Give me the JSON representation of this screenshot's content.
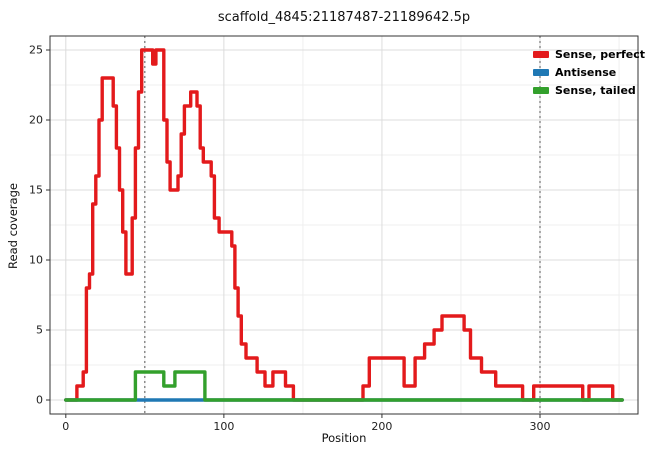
{
  "chart_data": {
    "type": "line",
    "subtype": "step-coverage",
    "title": "scaffold_4845:21187487-21189642.5p",
    "xlabel": "Position",
    "ylabel": "Read coverage",
    "xlim": [
      -10,
      362
    ],
    "ylim": [
      -1,
      26
    ],
    "x_ticks": [
      0,
      100,
      200,
      300
    ],
    "y_ticks": [
      0,
      5,
      10,
      15,
      20,
      25
    ],
    "x_minor": [
      50,
      150,
      250,
      350
    ],
    "y_minor": [
      2.5,
      7.5,
      12.5,
      17.5,
      22.5
    ],
    "grid": true,
    "legend_position": "top-right-inside",
    "vlines": [
      50,
      300
    ],
    "vline_color": "#555555",
    "panel_border_color": "#333333",
    "grid_major_color": "#dcdcdc",
    "grid_minor_color": "#efefef",
    "series": [
      {
        "name": "Sense, perfect",
        "color": "#e31a1c",
        "steps": [
          [
            0,
            7,
            0
          ],
          [
            7,
            11,
            1
          ],
          [
            11,
            13,
            2
          ],
          [
            13,
            15,
            8
          ],
          [
            15,
            17,
            9
          ],
          [
            17,
            19,
            14
          ],
          [
            19,
            21,
            16
          ],
          [
            21,
            23,
            20
          ],
          [
            23,
            30,
            23
          ],
          [
            30,
            32,
            21
          ],
          [
            32,
            34,
            18
          ],
          [
            34,
            36,
            15
          ],
          [
            36,
            38,
            12
          ],
          [
            38,
            42,
            9
          ],
          [
            42,
            44,
            13
          ],
          [
            44,
            46,
            18
          ],
          [
            46,
            48,
            22
          ],
          [
            48,
            55,
            25
          ],
          [
            55,
            57,
            24
          ],
          [
            57,
            62,
            25
          ],
          [
            62,
            64,
            20
          ],
          [
            64,
            66,
            17
          ],
          [
            66,
            71,
            15
          ],
          [
            71,
            73,
            16
          ],
          [
            73,
            75,
            19
          ],
          [
            75,
            79,
            21
          ],
          [
            79,
            83,
            22
          ],
          [
            83,
            85,
            21
          ],
          [
            85,
            87,
            18
          ],
          [
            87,
            92,
            17
          ],
          [
            92,
            94,
            16
          ],
          [
            94,
            97,
            13
          ],
          [
            97,
            105,
            12
          ],
          [
            105,
            107,
            11
          ],
          [
            107,
            109,
            8
          ],
          [
            109,
            111,
            6
          ],
          [
            111,
            114,
            4
          ],
          [
            114,
            121,
            3
          ],
          [
            121,
            126,
            2
          ],
          [
            126,
            131,
            1
          ],
          [
            131,
            139,
            2
          ],
          [
            139,
            144,
            1
          ],
          [
            144,
            188,
            0
          ],
          [
            188,
            192,
            1
          ],
          [
            192,
            214,
            3
          ],
          [
            214,
            221,
            1
          ],
          [
            221,
            227,
            3
          ],
          [
            227,
            233,
            4
          ],
          [
            233,
            238,
            5
          ],
          [
            238,
            252,
            6
          ],
          [
            252,
            256,
            5
          ],
          [
            256,
            263,
            3
          ],
          [
            263,
            272,
            2
          ],
          [
            272,
            289,
            1
          ],
          [
            289,
            296,
            0
          ],
          [
            296,
            327,
            1
          ],
          [
            327,
            331,
            0
          ],
          [
            331,
            346,
            1
          ],
          [
            346,
            352,
            0
          ]
        ]
      },
      {
        "name": "Antisense",
        "color": "#1f78b4",
        "steps": [
          [
            0,
            352,
            0
          ]
        ]
      },
      {
        "name": "Sense, tailed",
        "color": "#33a02c",
        "steps": [
          [
            0,
            44,
            0
          ],
          [
            44,
            62,
            2
          ],
          [
            62,
            69,
            1
          ],
          [
            69,
            88,
            2
          ],
          [
            88,
            352,
            0
          ]
        ]
      }
    ]
  }
}
